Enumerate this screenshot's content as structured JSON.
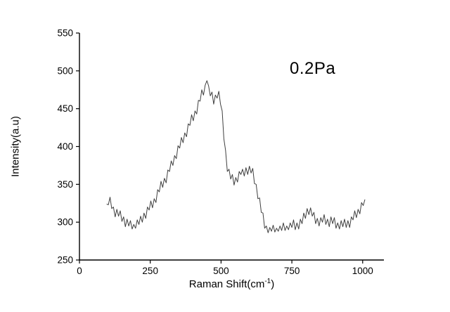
{
  "figure": {
    "annotation": "0.2Pa",
    "ylabel": "Intensity(a.u)",
    "xlabel_pre": "Raman Shift(cm",
    "xlabel_sup": "-1",
    "xlabel_post": ")"
  },
  "chart_data": {
    "type": "line",
    "title": "",
    "xlabel": "Raman Shift(cm^-1)",
    "ylabel": "Intensity(a.u)",
    "annotation": "0.2Pa",
    "legend": "none",
    "grid": false,
    "xlim": [
      0,
      1075
    ],
    "ylim": [
      250,
      550
    ],
    "x_ticks": [
      0,
      250,
      500,
      750,
      1000
    ],
    "y_ticks": [
      250,
      300,
      350,
      400,
      450,
      500,
      550
    ],
    "axis_color": "#000000",
    "line_color": "#3f3f3f",
    "series": [
      {
        "name": "0.2Pa",
        "x_start": 96,
        "x_step": 6,
        "y": [
          324,
          323,
          333,
          318,
          320,
          307,
          317,
          308,
          315,
          301,
          307,
          294,
          304,
          295,
          302,
          291,
          297,
          292,
          303,
          297,
          308,
          300,
          312,
          305,
          320,
          316,
          328,
          319,
          331,
          326,
          343,
          340,
          354,
          346,
          358,
          352,
          369,
          367,
          381,
          375,
          388,
          384,
          401,
          398,
          412,
          405,
          418,
          413,
          430,
          428,
          442,
          434,
          447,
          443,
          461,
          460,
          475,
          468,
          481,
          487,
          480,
          467,
          472,
          456,
          468,
          464,
          473,
          456,
          447,
          410,
          395,
          367,
          370,
          357,
          363,
          349,
          359,
          353,
          367,
          363,
          370,
          361,
          372,
          363,
          374,
          365,
          371,
          351,
          350,
          331,
          332,
          313,
          312,
          292,
          295,
          286,
          293,
          288,
          296,
          287,
          292,
          288,
          295,
          289,
          299,
          289,
          295,
          290,
          299,
          293,
          303,
          290,
          299,
          291,
          304,
          298,
          312,
          305,
          318,
          310,
          319,
          308,
          313,
          298,
          305,
          295,
          306,
          300,
          310,
          297,
          304,
          294,
          307,
          298,
          306,
          292,
          299,
          291,
          302,
          294,
          304,
          293,
          302,
          293,
          307,
          303,
          315,
          306,
          317,
          311,
          326,
          322,
          330
        ]
      }
    ]
  }
}
